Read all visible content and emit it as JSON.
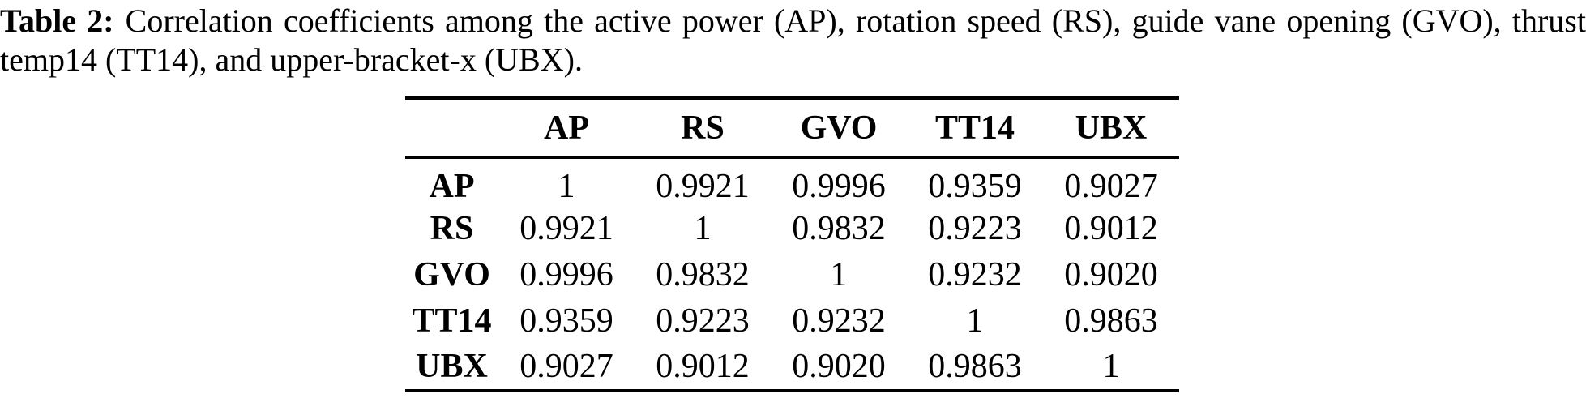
{
  "caption": {
    "label": "Table 2:",
    "line1": "Correlation coefficients among the active power (AP), rotation speed (RS), guide vane opening (GVO), thrust",
    "line2": "temp14 (TT14), and upper-bracket-x (UBX)."
  },
  "table": {
    "corner": "",
    "columns": [
      "AP",
      "RS",
      "GVO",
      "TT14",
      "UBX"
    ],
    "rows": [
      {
        "label": "AP",
        "values": [
          "1",
          "0.9921",
          "0.9996",
          "0.9359",
          "0.9027"
        ]
      },
      {
        "label": "RS",
        "values": [
          "0.9921",
          "1",
          "0.9832",
          "0.9223",
          "0.9012"
        ]
      },
      {
        "label": "GVO",
        "values": [
          "0.9996",
          "0.9832",
          "1",
          "0.9232",
          "0.9020"
        ]
      },
      {
        "label": "TT14",
        "values": [
          "0.9359",
          "0.9223",
          "0.9232",
          "1",
          "0.9863"
        ]
      },
      {
        "label": "UBX",
        "values": [
          "0.9027",
          "0.9012",
          "0.9020",
          "0.9863",
          "1"
        ]
      }
    ]
  },
  "colors": {
    "text": "#000000",
    "background": "#ffffff",
    "rule": "#000000"
  }
}
